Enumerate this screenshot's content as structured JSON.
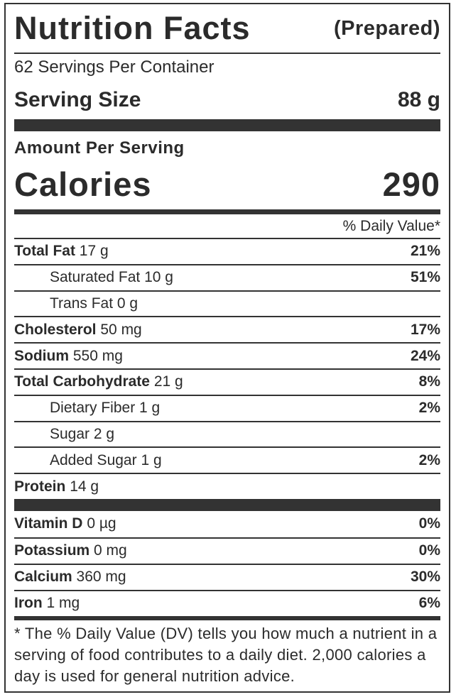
{
  "header": {
    "title": "Nutrition Facts",
    "subtitle": "(Prepared)"
  },
  "servings": "62 Servings Per Container",
  "serving_size": {
    "label": "Serving Size",
    "value": "88 g"
  },
  "amount_per_serving": "Amount Per Serving",
  "calories": {
    "label": "Calories",
    "value": "290"
  },
  "daily_value_header": "% Daily Value*",
  "nutrients": [
    {
      "name": "Total Fat",
      "amount": "17 g",
      "dv": "21%"
    },
    {
      "name": "Saturated Fat",
      "amount": "10 g",
      "dv": "51%"
    },
    {
      "name": "Trans Fat",
      "amount": "0 g"
    },
    {
      "name": "Cholesterol",
      "amount": "50 mg",
      "dv": "17%"
    },
    {
      "name": "Sodium",
      "amount": "550 mg",
      "dv": "24%"
    },
    {
      "name": "Total Carbohydrate",
      "amount": "21 g",
      "dv": "8%"
    },
    {
      "name": "Dietary Fiber",
      "amount": "1 g",
      "dv": "2%"
    },
    {
      "name": "Sugar",
      "amount": "2 g"
    },
    {
      "name": "Added Sugar",
      "amount": "1 g",
      "dv": "2%"
    },
    {
      "name": "Protein",
      "amount": "14 g"
    }
  ],
  "vitamins": [
    {
      "name": "Vitamin D",
      "amount": "0 µg",
      "dv": "0%"
    },
    {
      "name": "Potassium",
      "amount": "0 mg",
      "dv": "0%"
    },
    {
      "name": "Calcium",
      "amount": "360 mg",
      "dv": "30%"
    },
    {
      "name": "Iron",
      "amount": "1 mg",
      "dv": "6%"
    }
  ],
  "footnote": "* The % Daily Value (DV) tells you how much a nutrient in a serving of food contributes to a daily diet. 2,000 calories a day is used for general nutrition advice."
}
